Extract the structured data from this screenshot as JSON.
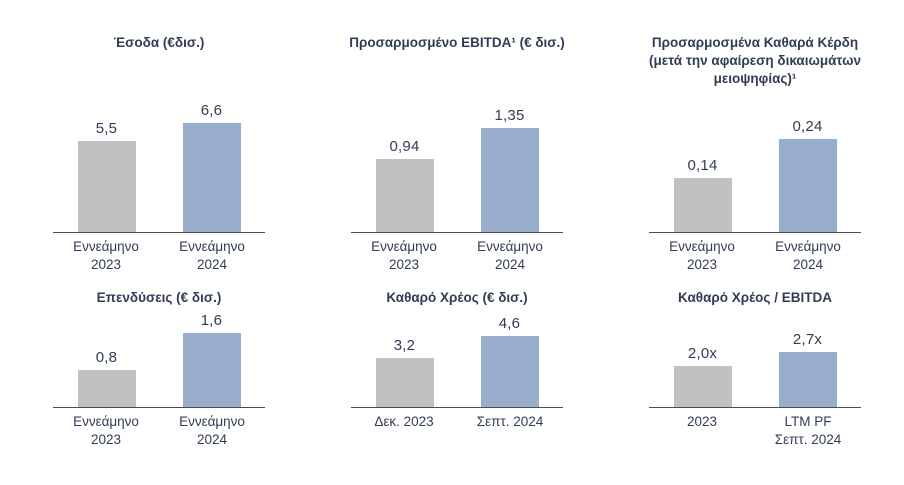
{
  "page": {
    "background": "#ffffff"
  },
  "colors": {
    "bar_2023_gray": "#c1c1c3",
    "bar_2024_blue": "#99aecd",
    "text_navy": "#313c55",
    "axis_line": "#4d4d4d"
  },
  "chart_data": [
    {
      "type": "bar",
      "title": "Έσοδα (€δισ.)",
      "categories": [
        "Εννεάμηνο\n2023",
        "Εννεάμηνο\n2024"
      ],
      "values": [
        5.5,
        6.6
      ],
      "value_labels": [
        "5,5",
        "6,6"
      ],
      "ylim": [
        0,
        7
      ],
      "grid": false,
      "legend": "none"
    },
    {
      "type": "bar",
      "title": "Προσαρμοσμένο EBITDA¹ (€ δισ.)",
      "categories": [
        "Εννεάμηνο\n2023",
        "Εννεάμηνο\n2024"
      ],
      "values": [
        0.94,
        1.35
      ],
      "value_labels": [
        "0,94",
        "1,35"
      ],
      "ylim": [
        0,
        1.5
      ],
      "grid": false,
      "legend": "none"
    },
    {
      "type": "bar",
      "title": "Προσαρμοσμένα Καθαρά Κέρδη\n(μετά την αφαίρεση δικαιωμάτων\nμειοψηφίας)¹",
      "categories": [
        "Εννεάμηνο\n2023",
        "Εννεάμηνο\n2024"
      ],
      "values": [
        0.14,
        0.24
      ],
      "value_labels": [
        "0,14",
        "0,24"
      ],
      "ylim": [
        0,
        0.3
      ],
      "grid": false,
      "legend": "none"
    },
    {
      "type": "bar",
      "title": "Επενδύσεις (€ δισ.)",
      "categories": [
        "Εννεάμηνο\n2023",
        "Εννεάμηνο\n2024"
      ],
      "values": [
        0.8,
        1.6
      ],
      "value_labels": [
        "0,8",
        "1,6"
      ],
      "ylim": [
        0,
        2
      ],
      "grid": false,
      "legend": "none"
    },
    {
      "type": "bar",
      "title": "Καθαρό Χρέος (€ δισ.)",
      "categories": [
        "Δεκ. 2023",
        "Σεπτ. 2024"
      ],
      "values": [
        3.2,
        4.6
      ],
      "value_labels": [
        "3,2",
        "4,6"
      ],
      "ylim": [
        0,
        6
      ],
      "grid": false,
      "legend": "none"
    },
    {
      "type": "bar",
      "title": "Καθαρό Χρέος / EBITDA",
      "categories": [
        "2023",
        "LTM PF\nΣεπτ. 2024"
      ],
      "values": [
        2.0,
        2.7
      ],
      "value_labels": [
        "2,0x",
        "2,7x"
      ],
      "ylim": [
        0,
        4.5
      ],
      "grid": false,
      "legend": "none"
    }
  ]
}
